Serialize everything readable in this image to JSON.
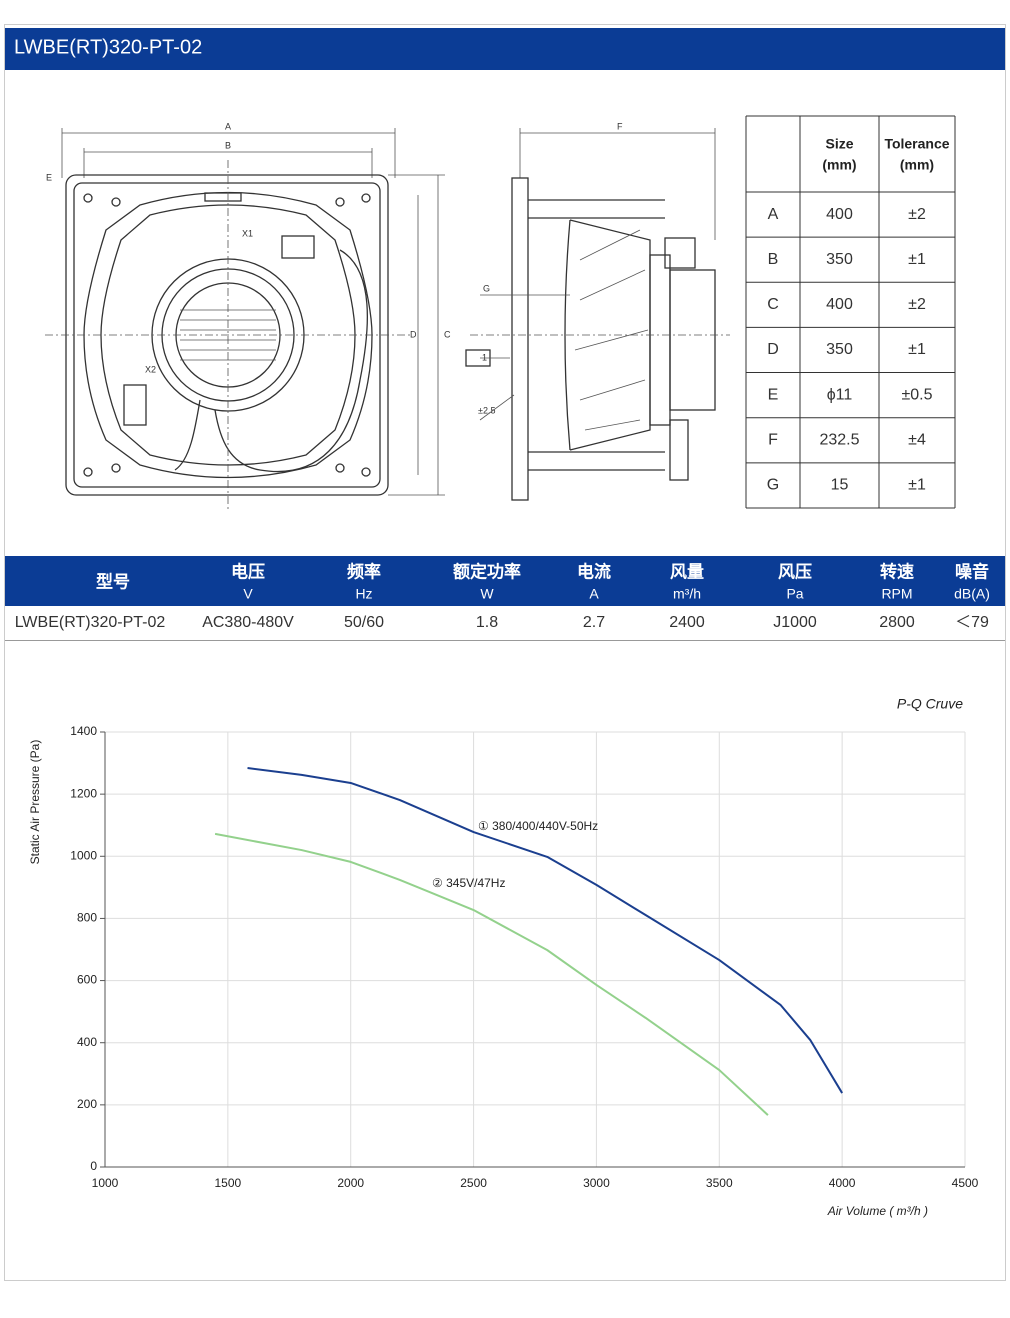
{
  "header": {
    "title": "LWBE(RT)320-PT-02"
  },
  "drawing": {
    "labels": [
      "A",
      "B",
      "C",
      "D",
      "E",
      "X1",
      "X2",
      "F",
      "G",
      "1",
      "±2.5"
    ]
  },
  "dimension_table": {
    "header": [
      {
        "label": "Size",
        "unit": "(mm)"
      },
      {
        "label": "Tolerance",
        "unit": "(mm)"
      }
    ],
    "rows": [
      [
        "A",
        "400",
        "±2"
      ],
      [
        "B",
        "350",
        "±1"
      ],
      [
        "C",
        "400",
        "±2"
      ],
      [
        "D",
        "350",
        "±1"
      ],
      [
        "E",
        "ϕ11",
        "±0.5"
      ],
      [
        "F",
        "232.5",
        "±4"
      ],
      [
        "G",
        "15",
        "±1"
      ]
    ]
  },
  "spec_table": {
    "header": [
      {
        "label": "型号"
      },
      {
        "label": "电压",
        "unit": "V"
      },
      {
        "label": "频率",
        "unit": "Hz"
      },
      {
        "label": "额定功率",
        "unit": "W"
      },
      {
        "label": "电流",
        "unit": "A"
      },
      {
        "label": "风量",
        "unit": "m³/h"
      },
      {
        "label": "风压",
        "unit": "Pa"
      },
      {
        "label": "转速",
        "unit": "RPM"
      },
      {
        "label": "噪音",
        "unit": "dB(A)"
      }
    ],
    "rows": [
      [
        "LWBE(RT)320-PT-02",
        "AC380-480V",
        "50/60",
        "1.8",
        "2.7",
        "2400",
        "J1000",
        "2800",
        "＜79"
      ]
    ]
  },
  "chart_data": {
    "type": "line",
    "title": "P-Q Cruve",
    "x_label": "Air Volume ( m³/h )",
    "y_label": "Static Air Pressure  (Pa)",
    "xlim": [
      1000,
      4500
    ],
    "ylim": [
      0,
      1400
    ],
    "xticks": [
      1000,
      1500,
      2000,
      2500,
      3000,
      3500,
      4000,
      4500
    ],
    "yticks": [
      0,
      200,
      400,
      600,
      800,
      1000,
      1200,
      1400
    ],
    "grid": true,
    "series": [
      {
        "name": "① 380/400/440V-50Hz",
        "color": "#1b3f8f",
        "x": [
          1580,
          1800,
          2000,
          2200,
          2500,
          2800,
          3000,
          3200,
          3500,
          3750,
          3870,
          4000
        ],
        "values": [
          1284,
          1262,
          1236,
          1181,
          1078,
          998,
          908,
          811,
          666,
          521,
          409,
          238
        ]
      },
      {
        "name": "② 345V/47Hz",
        "color": "#93d18c",
        "x": [
          1448,
          1800,
          2000,
          2200,
          2500,
          2800,
          3000,
          3200,
          3500,
          3698
        ],
        "values": [
          1072,
          1020,
          982,
          924,
          827,
          698,
          586,
          480,
          312,
          167
        ]
      }
    ]
  }
}
